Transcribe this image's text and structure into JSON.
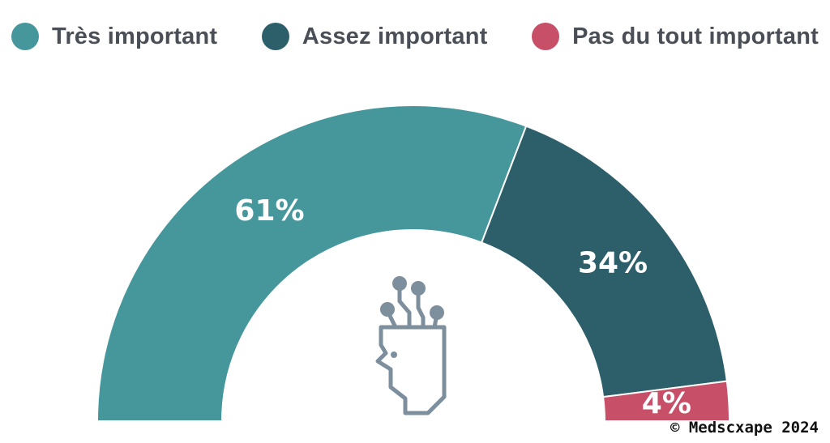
{
  "chart_data": {
    "type": "pie",
    "variant": "half-donut",
    "categories": [
      "Très important",
      "Assez important",
      "Pas du tout important"
    ],
    "values": [
      61,
      34,
      4
    ],
    "data_labels": [
      "61%",
      "34%",
      "4%"
    ],
    "colors": [
      "#45979c",
      "#2d5f6b",
      "#c84f68"
    ],
    "legend_position": "top",
    "center_icon": "ai-head-circuit-icon"
  },
  "copyright": "© Medscxape 2024"
}
